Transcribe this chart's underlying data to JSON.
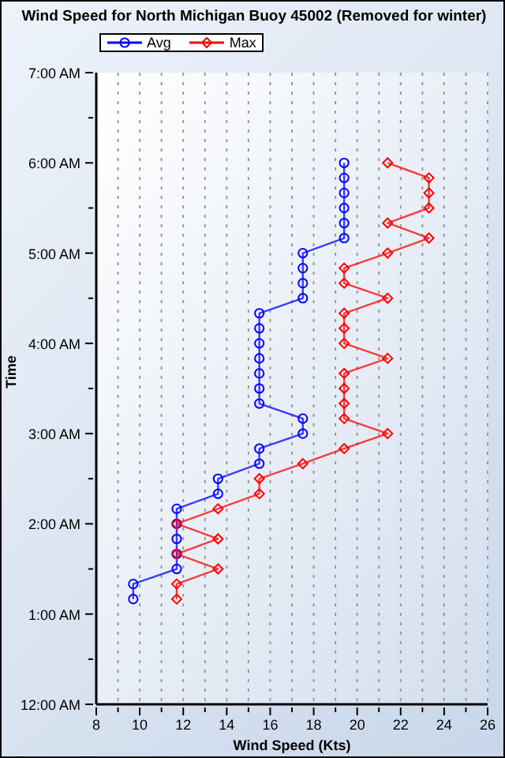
{
  "chart_data": {
    "type": "line",
    "title": "Wind Speed for North Michigan Buoy 45002 (Removed for winter)",
    "xlabel": "Wind Speed (Kts)",
    "ylabel": "Time",
    "orientation": "horizontal",
    "x": [
      1.1667,
      1.3333,
      1.5,
      1.6667,
      1.8333,
      2,
      2.1667,
      2.3333,
      2.5,
      2.6667,
      2.8333,
      3,
      3.1667,
      3.3333,
      3.5,
      3.6667,
      3.8333,
      4,
      4.1667,
      4.3333,
      4.5,
      4.6667,
      4.8333,
      5,
      5.1667,
      5.3333,
      5.5,
      5.6667,
      5.8333,
      6
    ],
    "series": [
      {
        "name": "Avg",
        "color": "#0000ff",
        "marker": "circle",
        "values": [
          9.7,
          9.7,
          11.7,
          11.7,
          11.7,
          11.7,
          11.7,
          13.6,
          13.6,
          15.5,
          15.5,
          17.5,
          17.5,
          15.5,
          15.5,
          15.5,
          15.5,
          15.5,
          15.5,
          15.5,
          17.5,
          17.5,
          17.5,
          17.5,
          19.4,
          19.4,
          19.4,
          19.4,
          19.4,
          19.4
        ]
      },
      {
        "name": "Max",
        "color": "#ff0000",
        "marker": "diamond",
        "values": [
          11.7,
          11.7,
          13.6,
          11.7,
          13.6,
          11.7,
          13.6,
          15.5,
          15.5,
          17.5,
          19.4,
          21.4,
          19.4,
          19.4,
          19.4,
          19.4,
          21.4,
          19.4,
          19.4,
          19.4,
          21.4,
          19.4,
          19.4,
          21.4,
          23.3,
          21.4,
          23.3,
          23.3,
          23.3,
          21.4
        ]
      }
    ],
    "xlim": [
      8,
      26
    ],
    "xticks": [
      8,
      {
        "value": 9,
        "label": null
      },
      10,
      {
        "value": 11,
        "label": null
      },
      12,
      {
        "value": 13,
        "label": null
      },
      14,
      {
        "value": 15,
        "label": null
      },
      16,
      {
        "value": 17,
        "label": null
      },
      18,
      {
        "value": 19,
        "label": null
      },
      20,
      {
        "value": 21,
        "label": null
      },
      22,
      {
        "value": 23,
        "label": null
      },
      24,
      {
        "value": 25,
        "label": null
      },
      26
    ],
    "ylim": [
      0,
      7
    ],
    "yticks": [
      {
        "value": 0,
        "label": "12:00 AM"
      },
      {
        "value": 0.5,
        "label": null
      },
      {
        "value": 1,
        "label": "1:00 AM"
      },
      {
        "value": 1.5,
        "label": null
      },
      {
        "value": 2,
        "label": "2:00 AM"
      },
      {
        "value": 2.5,
        "label": null
      },
      {
        "value": 3,
        "label": "3:00 AM"
      },
      {
        "value": 3.5,
        "label": null
      },
      {
        "value": 4,
        "label": "4:00 AM"
      },
      {
        "value": 4.5,
        "label": null
      },
      {
        "value": 5,
        "label": "5:00 AM"
      },
      {
        "value": 5.5,
        "label": null
      },
      {
        "value": 6,
        "label": "6:00 AM"
      },
      {
        "value": 6.5,
        "label": null
      },
      {
        "value": 7,
        "label": "7:00 AM"
      }
    ],
    "grid": "x",
    "legend": "top left",
    "line_style": "solid"
  }
}
